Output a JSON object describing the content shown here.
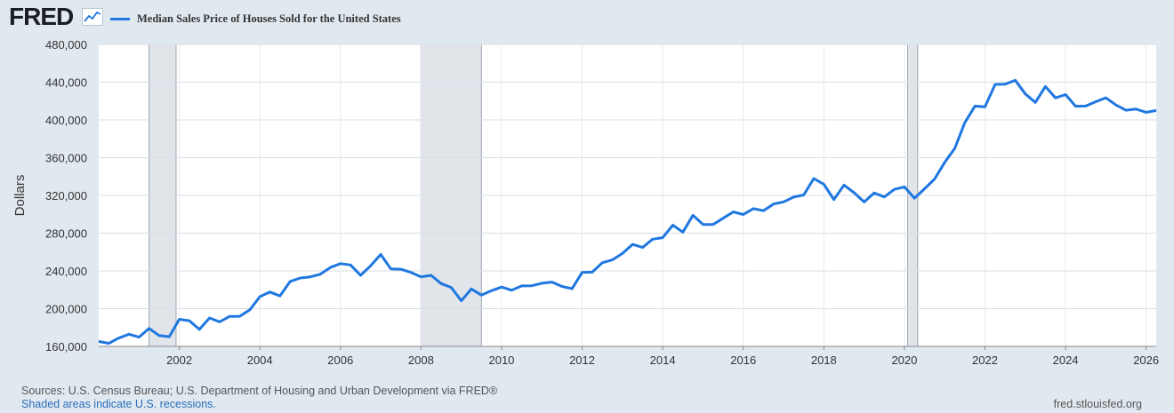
{
  "header": {
    "logo_text": "FRED",
    "logo_icon": "line-chart-icon",
    "series_title": "Median Sales Price of Houses Sold for the United States"
  },
  "colors": {
    "line": "#1f77e0",
    "recession": "#e1e5ea",
    "background": "#e1e9f0",
    "plot": "#ffffff"
  },
  "footer": {
    "sources": "Sources: U.S. Census Bureau; U.S. Department of Housing and Urban Development via FRED®",
    "recession_note": "Shaded areas indicate U.S. recessions.",
    "url": "fred.stlouisfed.org"
  },
  "chart_data": {
    "type": "line",
    "title": "Median Sales Price of Houses Sold for the United States",
    "ylabel": "Dollars",
    "xlabel": "",
    "xlim": [
      2000.0,
      2026.25
    ],
    "ylim": [
      160000,
      480000
    ],
    "grid": true,
    "y_ticks": [
      160000,
      200000,
      240000,
      280000,
      320000,
      360000,
      400000,
      440000,
      480000
    ],
    "y_tick_labels": [
      "160,000",
      "200,000",
      "240,000",
      "280,000",
      "320,000",
      "360,000",
      "400,000",
      "440,000",
      "480,000"
    ],
    "x_ticks": [
      2002,
      2004,
      2006,
      2008,
      2010,
      2012,
      2014,
      2016,
      2018,
      2020,
      2022,
      2024,
      2026
    ],
    "x_tick_labels": [
      "2002",
      "2004",
      "2006",
      "2008",
      "2010",
      "2012",
      "2014",
      "2016",
      "2018",
      "2020",
      "2022",
      "2024",
      "2026"
    ],
    "recessions": [
      {
        "start": 2001.25,
        "end": 2001.92
      },
      {
        "start": 2008.0,
        "end": 2009.5
      },
      {
        "start": 2020.08,
        "end": 2020.33
      }
    ],
    "series": [
      {
        "name": "Median Sales Price of Houses Sold for the United States",
        "x": [
          2000.0,
          2000.25,
          2000.5,
          2000.75,
          2001.0,
          2001.25,
          2001.5,
          2001.75,
          2002.0,
          2002.25,
          2002.5,
          2002.75,
          2003.0,
          2003.25,
          2003.5,
          2003.75,
          2004.0,
          2004.25,
          2004.5,
          2004.75,
          2005.0,
          2005.25,
          2005.5,
          2005.75,
          2006.0,
          2006.25,
          2006.5,
          2006.75,
          2007.0,
          2007.25,
          2007.5,
          2007.75,
          2008.0,
          2008.25,
          2008.5,
          2008.75,
          2009.0,
          2009.25,
          2009.5,
          2009.75,
          2010.0,
          2010.25,
          2010.5,
          2010.75,
          2011.0,
          2011.25,
          2011.5,
          2011.75,
          2012.0,
          2012.25,
          2012.5,
          2012.75,
          2013.0,
          2013.25,
          2013.5,
          2013.75,
          2014.0,
          2014.25,
          2014.5,
          2014.75,
          2015.0,
          2015.25,
          2015.5,
          2015.75,
          2016.0,
          2016.25,
          2016.5,
          2016.75,
          2017.0,
          2017.25,
          2017.5,
          2017.75,
          2018.0,
          2018.25,
          2018.5,
          2018.75,
          2019.0,
          2019.25,
          2019.5,
          2019.75,
          2020.0,
          2020.25,
          2020.5,
          2020.75,
          2021.0,
          2021.25,
          2021.5,
          2021.75,
          2022.0,
          2022.25,
          2022.5,
          2022.75,
          2023.0,
          2023.25,
          2023.5,
          2023.75,
          2024.0,
          2024.25,
          2024.5,
          2024.75,
          2025.0,
          2025.25,
          2025.5,
          2025.75,
          2026.0,
          2026.25
        ],
        "values": [
          165300,
          163200,
          168800,
          172900,
          169800,
          179000,
          171500,
          170300,
          188700,
          187200,
          178000,
          190100,
          186000,
          191800,
          191900,
          198800,
          212700,
          217600,
          213500,
          228800,
          232500,
          233700,
          236400,
          243600,
          247700,
          246300,
          235300,
          245400,
          257400,
          242200,
          241800,
          238400,
          233700,
          235300,
          226500,
          222500,
          208400,
          220900,
          214300,
          219000,
          222900,
          219500,
          224100,
          224300,
          226900,
          228100,
          223500,
          221100,
          238400,
          238700,
          248700,
          251700,
          258400,
          268100,
          264800,
          273600,
          275200,
          288500,
          281000,
          298900,
          289200,
          289200,
          295800,
          302500,
          299800,
          306000,
          303800,
          310900,
          313100,
          318200,
          320500,
          337900,
          331800,
          315600,
          330900,
          322800,
          313000,
          322500,
          318400,
          326400,
          329000,
          317100,
          327100,
          337500,
          355000,
          369800,
          397100,
          414600,
          413900,
          437600,
          437800,
          442000,
          427600,
          418500,
          435400,
          423300,
          426800,
          414500,
          414700,
          419300,
          423400,
          415800,
          410300,
          411500,
          408000,
          410000
        ]
      }
    ]
  }
}
